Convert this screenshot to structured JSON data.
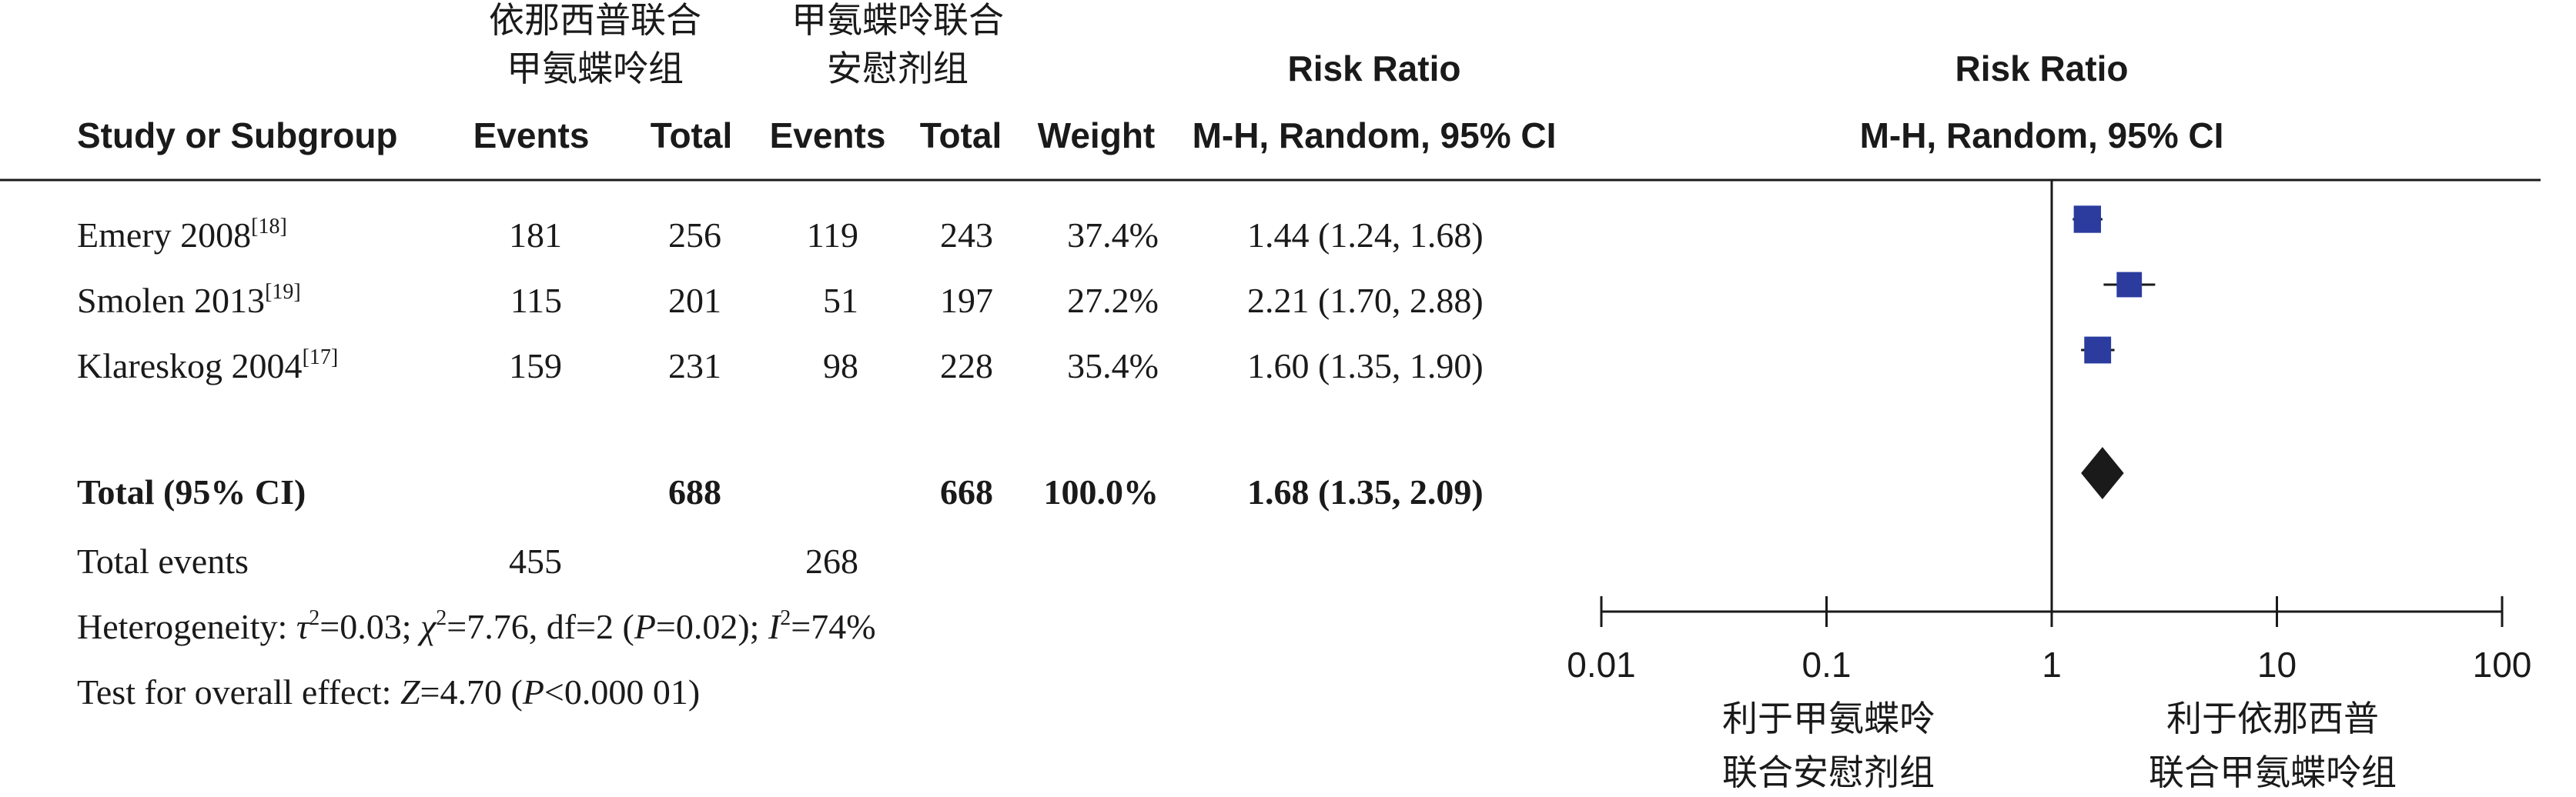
{
  "header": {
    "group1_line1": "依那西普联合",
    "group1_line2": "甲氨蝶呤组",
    "group2_line1": "甲氨蝶呤联合",
    "group2_line2": "安慰剂组",
    "rr_title": "Risk Ratio",
    "rr_method": "M-H, Random, 95% CI",
    "plot_title": "Risk Ratio",
    "plot_method": "M-H, Random, 95% CI",
    "col_study": "Study or Subgroup",
    "col_events1": "Events",
    "col_total1": "Total",
    "col_events2": "Events",
    "col_total2": "Total",
    "col_weight": "Weight"
  },
  "total_row": {
    "label": "Total (95% CI)",
    "total1": "688",
    "total2": "668",
    "weight": "100.0%",
    "ci_text": "1.68 (1.35, 2.09)"
  },
  "total_events": {
    "label": "Total events",
    "events1": "455",
    "events2": "268"
  },
  "heterogeneity": {
    "prefix": "Heterogeneity: ",
    "tau": "τ",
    "tau_val": "=0.03; ",
    "chi": "χ",
    "chi_val": "=7.76, df=2 (",
    "p": "P",
    "p_val": "=0.02); ",
    "i": "I",
    "i_val": "=74%",
    "sup": "2"
  },
  "overall_effect": {
    "prefix": "Test for overall effect: ",
    "z": "Z",
    "z_val": "=4.70 (",
    "p": "P",
    "p_val": "<0.000 01)"
  },
  "axis": {
    "ticks": [
      "0.01",
      "0.1",
      "1",
      "10",
      "100"
    ],
    "favours_left_line1": "利于甲氨蝶呤",
    "favours_left_line2": "联合安慰剂组",
    "favours_right_line1": "利于依那西普",
    "favours_right_line2": "联合甲氨蝶呤组"
  },
  "colors": {
    "study_marker": "#2b3c9e",
    "diamond": "#1a1a1a",
    "line": "#1a1a1a"
  },
  "chart_data": {
    "type": "forest",
    "scale": "log",
    "xlim": [
      0.01,
      100
    ],
    "studies": [
      {
        "study": "Emery 2008",
        "ref": "[18]",
        "events1": 181,
        "total1": 256,
        "events2": 119,
        "total2": 243,
        "weight": "37.4%",
        "rr": 1.44,
        "lo": 1.24,
        "hi": 1.68,
        "ci_text": "1.44 (1.24, 1.68)"
      },
      {
        "study": "Smolen 2013",
        "ref": "[19]",
        "events1": 115,
        "total1": 201,
        "events2": 51,
        "total2": 197,
        "weight": "27.2%",
        "rr": 2.21,
        "lo": 1.7,
        "hi": 2.88,
        "ci_text": "2.21 (1.70, 2.88)"
      },
      {
        "study": "Klareskog 2004",
        "ref": "[17]",
        "events1": 159,
        "total1": 231,
        "events2": 98,
        "total2": 228,
        "weight": "35.4%",
        "rr": 1.6,
        "lo": 1.35,
        "hi": 1.9,
        "ci_text": "1.60 (1.35, 1.90)"
      }
    ],
    "pooled": {
      "rr": 1.68,
      "lo": 1.35,
      "hi": 2.09
    }
  }
}
